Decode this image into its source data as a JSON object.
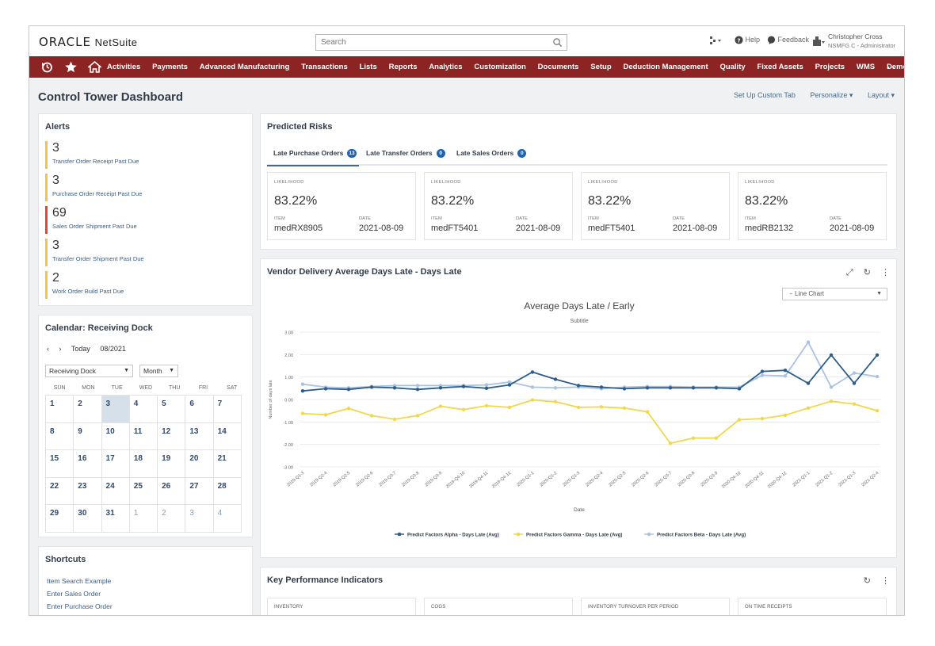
{
  "header": {
    "logo_oracle": "ORACLE",
    "logo_netsuite": "NetSuite",
    "search_placeholder": "Search",
    "help": "Help",
    "feedback": "Feedback",
    "user_name": "Christopher Cross",
    "user_role": "NSMFG C - Administrator"
  },
  "nav": {
    "items": [
      "Activities",
      "Payments",
      "Advanced Manufacturing",
      "Transactions",
      "Lists",
      "Reports",
      "Analytics",
      "Customization",
      "Documents",
      "Setup",
      "Deduction Management",
      "Quality",
      "Fixed Assets",
      "Projects",
      "WMS",
      "Demo Assist"
    ],
    "more": "..."
  },
  "page": {
    "title": "Control Tower Dashboard",
    "actions": [
      "Set Up Custom Tab",
      "Personalize ▾",
      "Layout ▾"
    ]
  },
  "alerts": {
    "title": "Alerts",
    "items": [
      {
        "count": "3",
        "label": "Transfer Order Receipt Past Due",
        "color": "#f0c64a"
      },
      {
        "count": "3",
        "label": "Purchase Order Receipt Past Due",
        "color": "#f0c64a"
      },
      {
        "count": "69",
        "label": "Sales Order Shipment Past Due",
        "color": "#d94b3d"
      },
      {
        "count": "3",
        "label": "Transfer Order Shipment Past Due",
        "color": "#f0c64a"
      },
      {
        "count": "2",
        "label": "Work Order Build Past Due",
        "color": "#f0c64a"
      }
    ]
  },
  "calendar": {
    "title": "Calendar: Receiving Dock",
    "prev": "‹",
    "next": "›",
    "today": "Today",
    "month_label": "08/2021",
    "calendar_select": "Receiving Dock",
    "view_select": "Month",
    "weekdays": [
      "SUN",
      "MON",
      "TUE",
      "WED",
      "THU",
      "FRI",
      "SAT"
    ],
    "weeks": [
      [
        "1",
        "2",
        "3",
        "4",
        "5",
        "6",
        "7"
      ],
      [
        "8",
        "9",
        "10",
        "11",
        "12",
        "13",
        "14"
      ],
      [
        "15",
        "16",
        "17",
        "18",
        "19",
        "20",
        "21"
      ],
      [
        "22",
        "23",
        "24",
        "25",
        "26",
        "27",
        "28"
      ],
      [
        "29",
        "30",
        "31",
        "1",
        "2",
        "3",
        "4"
      ]
    ],
    "today_date": "3"
  },
  "shortcuts": {
    "title": "Shortcuts",
    "items": [
      "Item Search Example",
      "Enter Sales Order",
      "Enter Purchase Order"
    ]
  },
  "risks": {
    "title": "Predicted Risks",
    "tabs": [
      {
        "label": "Late Purchase Orders",
        "badge": "13"
      },
      {
        "label": "Late Transfer Orders",
        "badge": "0"
      },
      {
        "label": "Late Sales Orders",
        "badge": "0"
      }
    ],
    "likelihood_label": "LIKELIHOOD",
    "item_label": "ITEM",
    "date_label": "DATE",
    "cards": [
      {
        "likelihood": "83.22%",
        "item": "medRX8905",
        "date": "2021-08-09"
      },
      {
        "likelihood": "83.22%",
        "item": "medFT5401",
        "date": "2021-08-09"
      },
      {
        "likelihood": "83.22%",
        "item": "medFT5401",
        "date": "2021-08-09"
      },
      {
        "likelihood": "83.22%",
        "item": "medRB2132",
        "date": "2021-08-09"
      }
    ]
  },
  "vendor_chart": {
    "portlet_title": "Vendor Delivery Average Days Late - Days Late",
    "chart_type_select": "Line Chart",
    "tools": [
      "⤢",
      "↻",
      "⋮"
    ]
  },
  "kpi": {
    "title": "Key Performance Indicators",
    "tools": [
      "↻",
      "⋮"
    ],
    "cards": [
      "INVENTORY",
      "COGS",
      "INVENTORY TURNOVER PER PERIOD",
      "ON TIME RECEIPTS"
    ]
  },
  "chart_data": {
    "type": "line",
    "title": "Average Days Late / Early",
    "subtitle": "Subtitle",
    "xlabel": "Date",
    "ylabel": "Number of days late",
    "ylim": [
      -3,
      3
    ],
    "yticks": [
      "3.00",
      "2.00",
      "1.00",
      "0.00",
      "-1.00",
      "-2.00",
      "-3.00"
    ],
    "grid": true,
    "legend_position": "bottom",
    "categories": [
      "2019-Q1-3",
      "2019-Q2-4",
      "2019-Q2-5",
      "2019-Q2-6",
      "2019-Q3-7",
      "2019-Q3-8",
      "2019-Q3-9",
      "2019-Q4-10",
      "2019-Q4-11",
      "2019-Q4-12",
      "2020-Q1-1",
      "2020-Q1-2",
      "2020-Q1-3",
      "2020-Q2-4",
      "2020-Q2-5",
      "2020-Q2-6",
      "2020-Q3-7",
      "2020-Q3-8",
      "2020-Q3-9",
      "2020-Q4-10",
      "2020-Q4-11",
      "2020-Q4-12",
      "2021-Q1-1",
      "2021-Q1-2",
      "2021-Q1-3",
      "2021-Q2-4"
    ],
    "series": [
      {
        "name": "Predict Factors Alpha - Days Late (Avg)",
        "color": "#2d5d8a",
        "values": [
          0.38,
          0.48,
          0.45,
          0.55,
          0.52,
          0.45,
          0.52,
          0.58,
          0.5,
          0.65,
          1.22,
          0.9,
          0.62,
          0.55,
          0.48,
          0.52,
          0.52,
          0.52,
          0.52,
          0.48,
          1.25,
          1.3,
          0.72,
          1.98,
          0.72,
          1.98
        ]
      },
      {
        "name": "Predict Factors Gamma - Days Late (Avg)",
        "color": "#f0d84a",
        "values": [
          -0.62,
          -0.68,
          -0.4,
          -0.72,
          -0.88,
          -0.72,
          -0.3,
          -0.45,
          -0.28,
          -0.35,
          -0.02,
          -0.1,
          -0.35,
          -0.33,
          -0.38,
          -0.55,
          -1.95,
          -1.72,
          -1.72,
          -0.9,
          -0.85,
          -0.7,
          -0.38,
          -0.08,
          -0.2,
          -0.5
        ]
      },
      {
        "name": "Predict Factors Beta - Days Late (Avg)",
        "color": "#a9c3e3",
        "values": [
          0.68,
          0.55,
          0.52,
          0.58,
          0.62,
          0.62,
          0.62,
          0.62,
          0.65,
          0.78,
          0.55,
          0.52,
          0.55,
          0.48,
          0.55,
          0.58,
          0.58,
          0.55,
          0.55,
          0.55,
          1.08,
          1.05,
          2.55,
          0.55,
          1.18,
          1.02
        ]
      }
    ]
  }
}
